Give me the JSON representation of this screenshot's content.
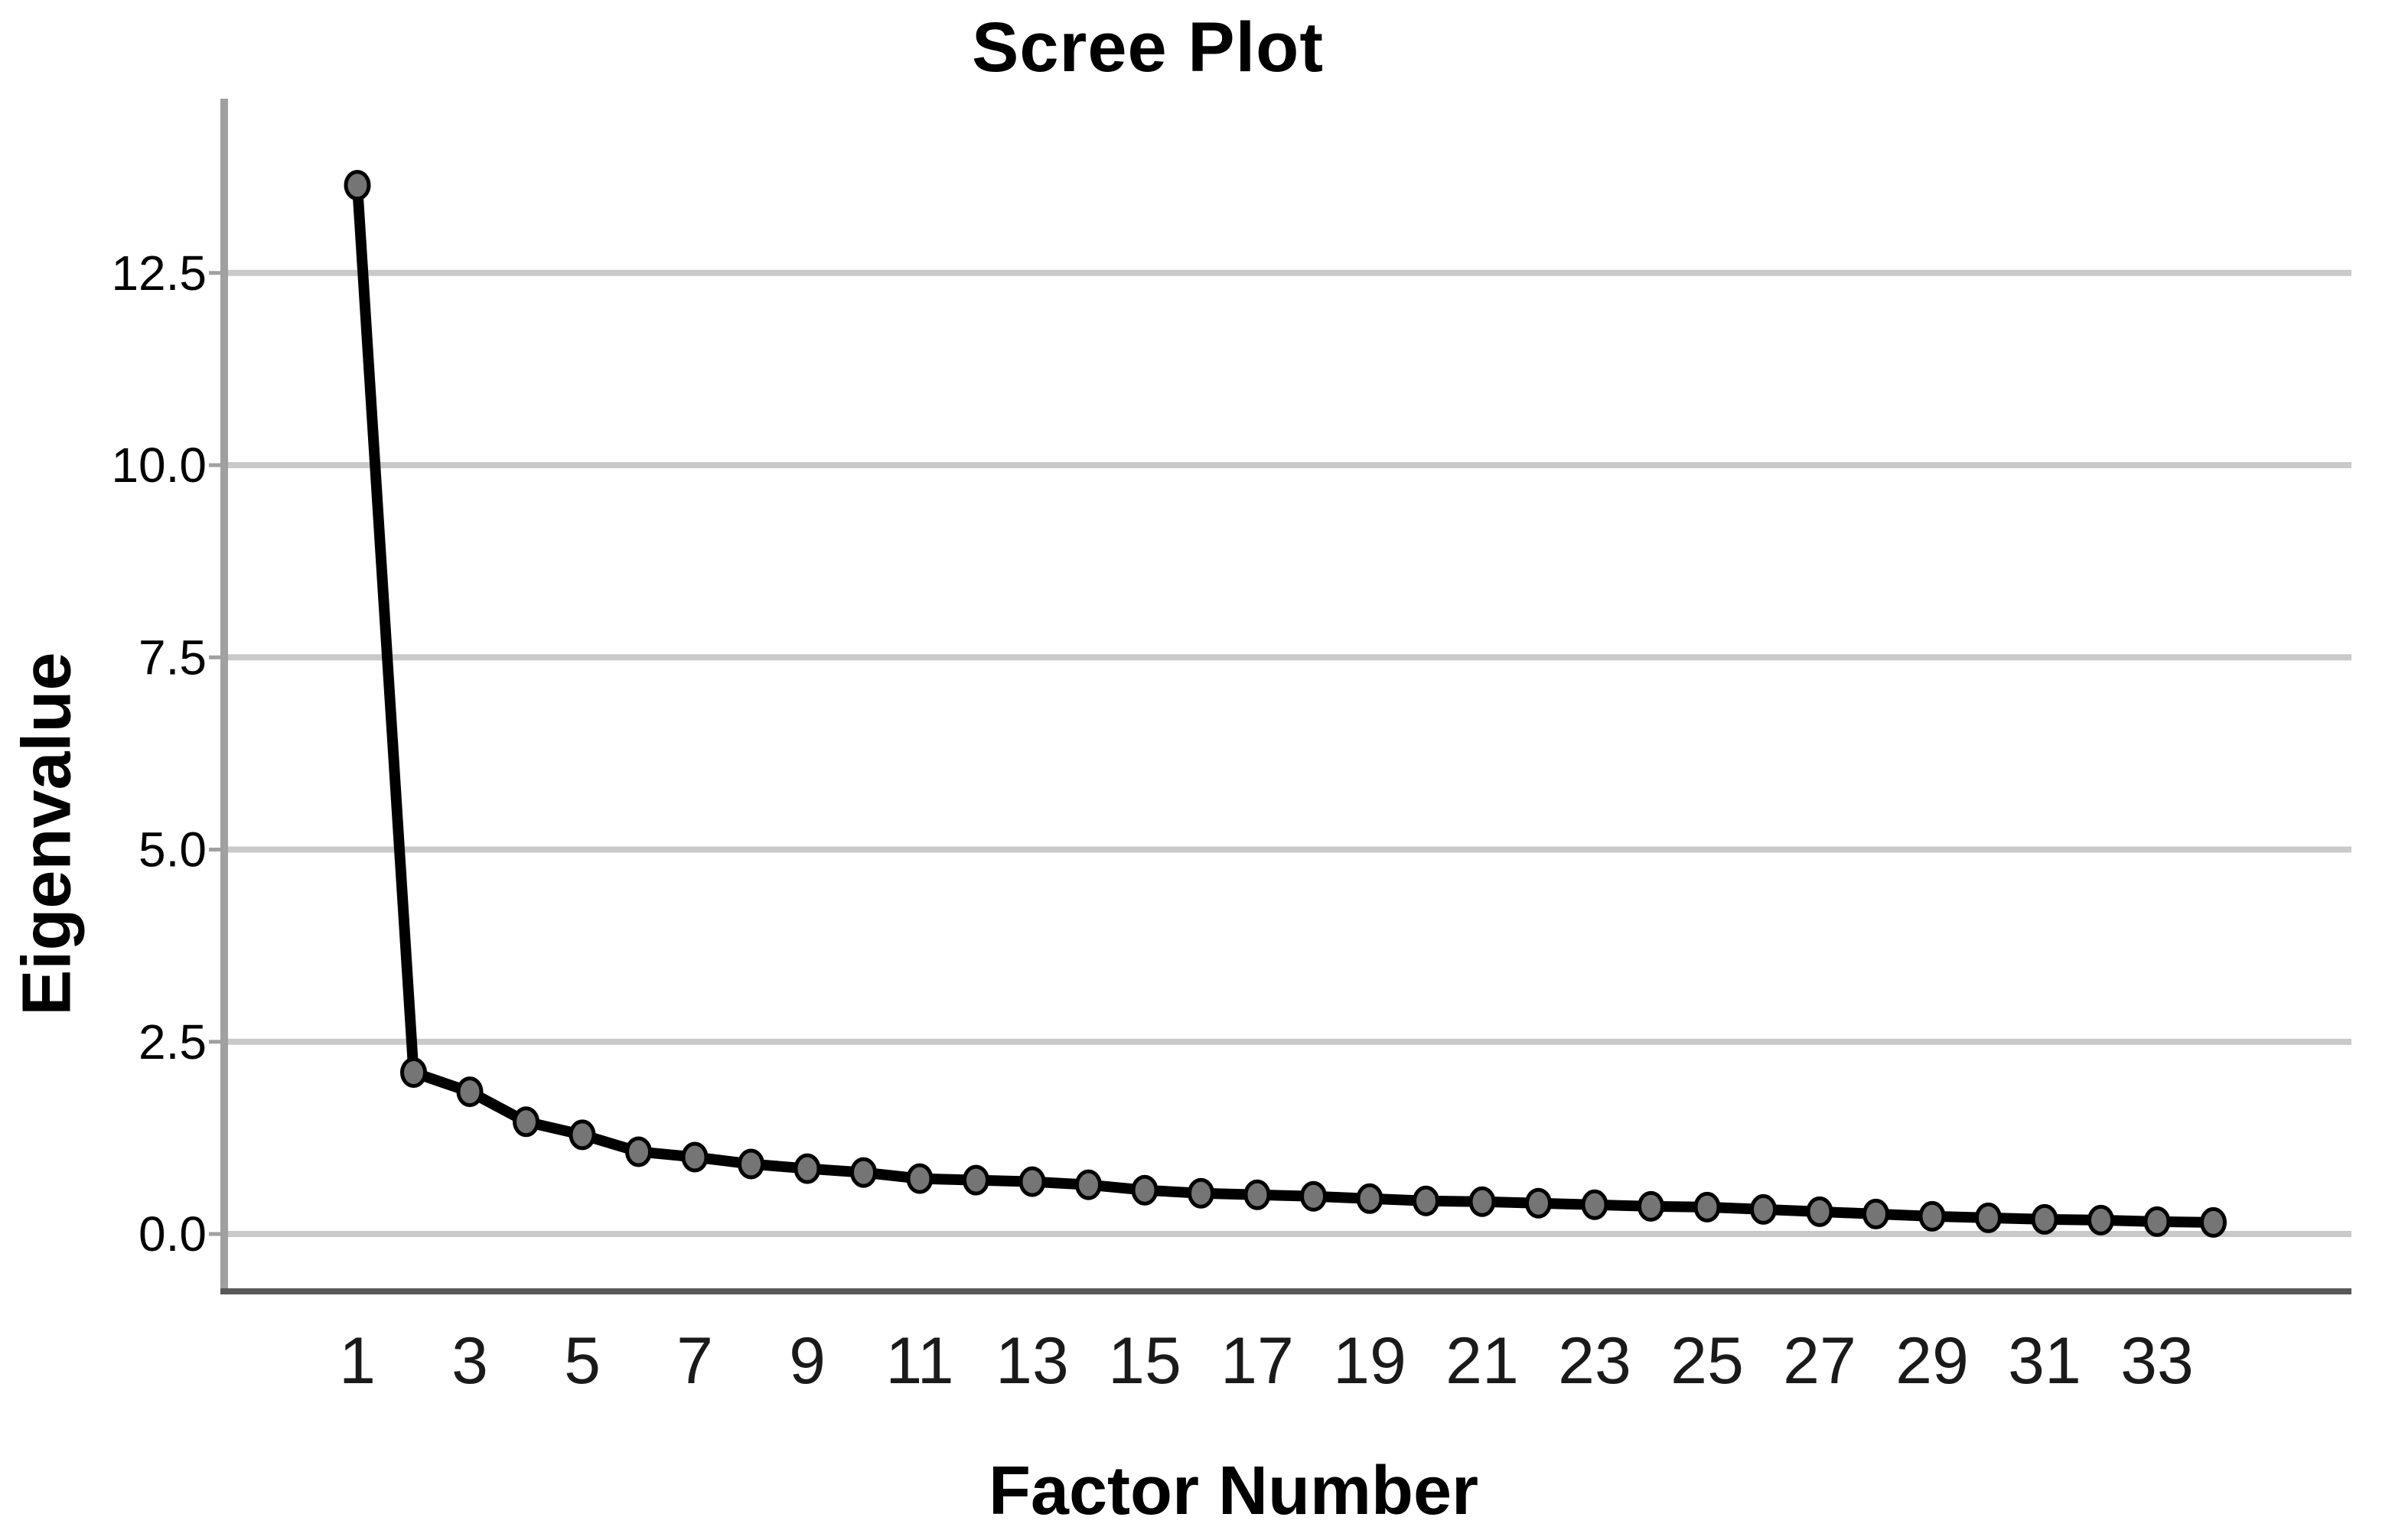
{
  "chart_data": {
    "type": "line",
    "title": "Scree Plot",
    "xlabel": "Factor Number",
    "ylabel": "Eigenvalue",
    "x": [
      1,
      2,
      3,
      4,
      5,
      6,
      7,
      8,
      9,
      10,
      11,
      12,
      13,
      14,
      15,
      16,
      17,
      18,
      19,
      20,
      21,
      22,
      23,
      24,
      25,
      26,
      27,
      28,
      29,
      30,
      31,
      32,
      33,
      34
    ],
    "series": [
      {
        "name": "Eigenvalue",
        "values": [
          13.64,
          2.1,
          1.85,
          1.46,
          1.29,
          1.07,
          1.0,
          0.91,
          0.85,
          0.8,
          0.72,
          0.7,
          0.68,
          0.64,
          0.57,
          0.53,
          0.51,
          0.49,
          0.46,
          0.43,
          0.42,
          0.4,
          0.38,
          0.36,
          0.35,
          0.32,
          0.29,
          0.26,
          0.23,
          0.21,
          0.19,
          0.18,
          0.16,
          0.15
        ]
      }
    ],
    "x_tick_labels": [
      "1",
      "3",
      "5",
      "7",
      "9",
      "11",
      "13",
      "15",
      "17",
      "19",
      "21",
      "23",
      "25",
      "27",
      "29",
      "31",
      "33"
    ],
    "y_tick_labels": [
      "0.0",
      "2.5",
      "5.0",
      "7.5",
      "10.0",
      "12.5"
    ],
    "y_ticks": [
      0,
      2.5,
      5.0,
      7.5,
      10.0,
      12.5
    ],
    "ylim": [
      0,
      14.2
    ],
    "grid": "horizontal",
    "legend": "none",
    "colors": {
      "line": "#000000",
      "marker_fill": "#757575",
      "marker_stroke": "#000000",
      "gridline": "#c9c9c9",
      "y_axis": "#a0a0a0",
      "x_axis": "#595959",
      "text": "#000000",
      "background": "#ffffff"
    }
  }
}
